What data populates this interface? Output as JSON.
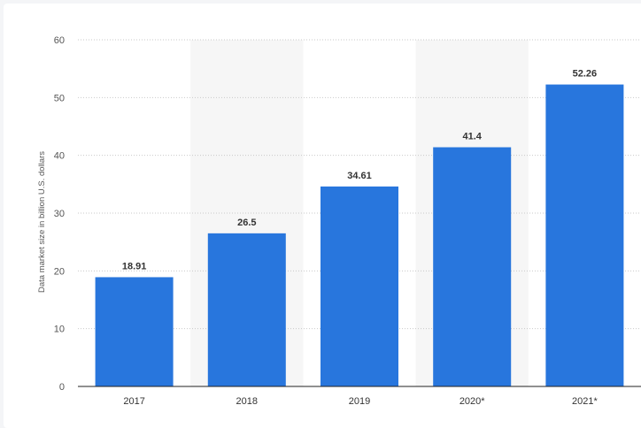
{
  "chart_data": {
    "type": "bar",
    "categories": [
      "2017",
      "2018",
      "2019",
      "2020*",
      "2021*"
    ],
    "values": [
      18.91,
      26.5,
      34.61,
      41.4,
      52.26
    ],
    "value_labels": [
      "18.91",
      "26.5",
      "34.61",
      "41.4",
      "52.26"
    ],
    "title": "",
    "xlabel": "",
    "ylabel": "Data market size in billion U.S. dollars",
    "ylim": [
      0,
      60
    ],
    "yticks": [
      0,
      10,
      20,
      30,
      40,
      50,
      60
    ],
    "grid": true,
    "bar_color": "#2876dd",
    "band_color": "#f6f6f6",
    "shaded_categories": [
      "2018",
      "2020*"
    ]
  }
}
